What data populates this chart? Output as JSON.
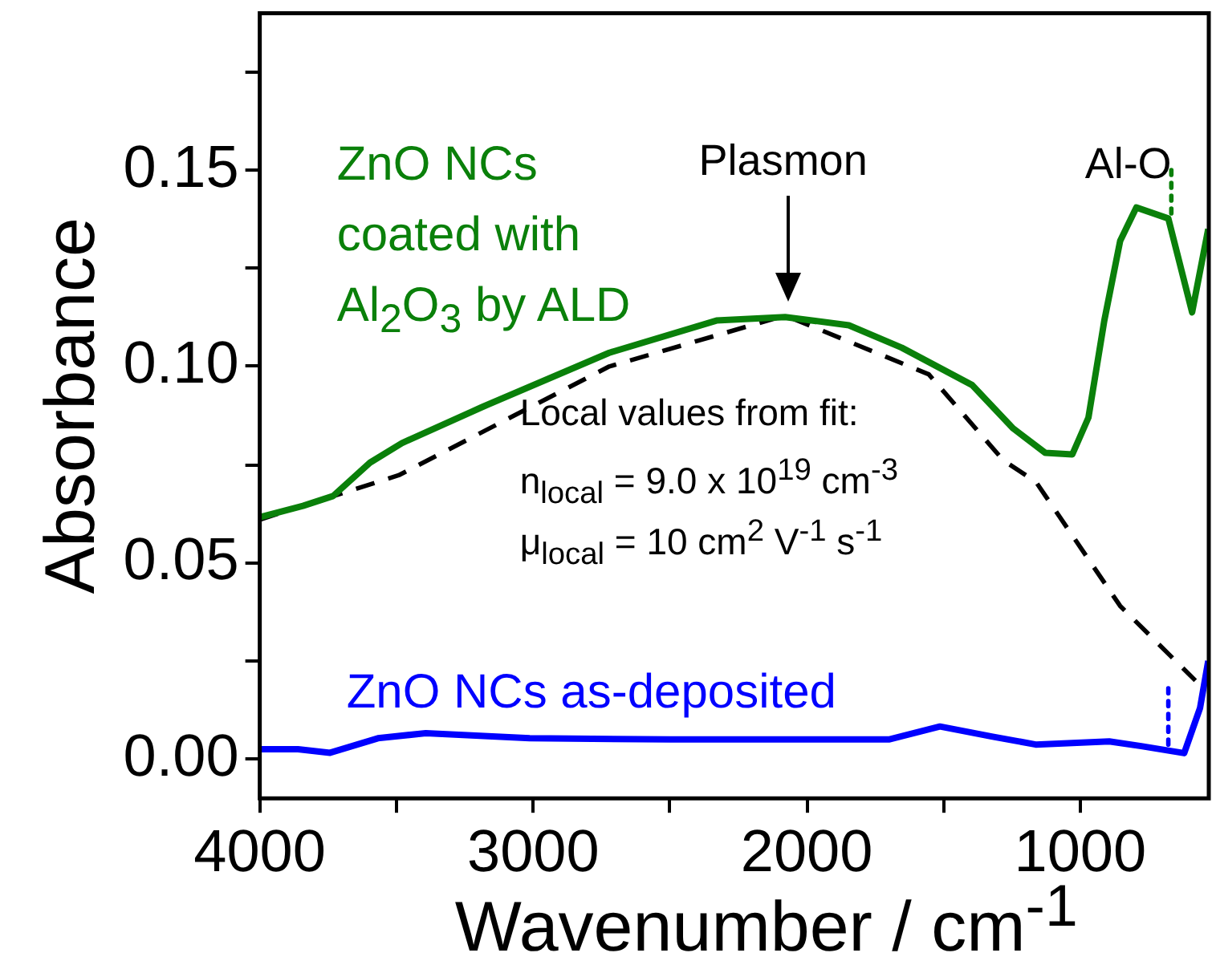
{
  "chart_data": {
    "type": "line",
    "xlabel": "Wavenumber / cm$^{-1}$",
    "ylabel": "Absorbance",
    "xlim": [
      4000,
      530
    ],
    "ylim": [
      -0.01,
      0.19
    ],
    "xticks": [
      4000,
      {
        "value": 3500,
        "label": null
      },
      3000,
      {
        "value": 2500,
        "label": null
      },
      2000,
      {
        "value": 1500,
        "label": null
      },
      1000
    ],
    "yticks": [
      {
        "value": 0,
        "label": "0.00"
      },
      {
        "value": 0.025,
        "label": null
      },
      0.05,
      {
        "value": 0.075,
        "label": null
      },
      {
        "value": 0.1,
        "label": "0.10"
      },
      {
        "value": 0.125,
        "label": null
      },
      0.15,
      {
        "value": 0.175,
        "label": null
      }
    ],
    "grid": false,
    "legend": false,
    "marker": "none",
    "series": [
      {
        "name": "ZnO NCs coated with Al$_{2}$O$_{3}$ by ALD",
        "color": "#0a800a",
        "line_style": "solid",
        "x": [
          4000,
          3842,
          3732,
          3597,
          3480,
          3189,
          2722,
          2330,
          2079,
          1846,
          1653,
          1396,
          1245,
          1128,
          1029,
          970,
          912,
          854,
          795,
          678,
          591,
          532
        ],
        "values": [
          0.0616,
          0.0645,
          0.067,
          0.0755,
          0.0805,
          0.0896,
          0.1035,
          0.1117,
          0.1126,
          0.1105,
          0.1048,
          0.0953,
          0.0842,
          0.078,
          0.0776,
          0.087,
          0.1117,
          0.132,
          0.1405,
          0.1377,
          0.1138,
          0.135
        ]
      },
      {
        "name": "ZnO NCs as-deposited",
        "color": "#0000ff",
        "line_style": "solid",
        "x": [
          4000,
          3860,
          3743,
          3568,
          3393,
          3013,
          2500,
          2000,
          1700,
          1513,
          1320,
          1163,
          894,
          777,
          620,
          562,
          532
        ],
        "values": [
          0.0025,
          0.0025,
          0.0016,
          0.0053,
          0.0066,
          0.0053,
          0.005,
          0.005,
          0.005,
          0.0083,
          0.0057,
          0.0037,
          0.0045,
          0.0033,
          0.0015,
          0.013,
          0.025
        ]
      },
      {
        "color": "#000000",
        "line_style": "dashed",
        "x": [
          4000,
          3492,
          2722,
          2079,
          1554,
          1280,
          1163,
          854,
          579
        ],
        "values": [
          0.061,
          0.0723,
          0.1,
          0.113,
          0.098,
          0.076,
          0.0707,
          0.039,
          0.02
        ]
      },
      {
        "color": "#0a800a",
        "line_style": "dotted",
        "x": [
          667,
          667
        ],
        "values": [
          0.139,
          0.151
        ]
      },
      {
        "color": "#0000ff",
        "line_style": "dotted",
        "x": [
          678,
          678
        ],
        "values": [
          0.0037,
          0.0185
        ]
      }
    ],
    "annotations": [
      "Local values from fit:",
      "n$_{local}$ = 9.0 x 10$^{19}$ cm$^{-3}$",
      "μ$_{local}$ = 10 cm$^{2}$ V$^{-1}$ s$^{-1}$",
      "Plasmon",
      "Al-O"
    ]
  }
}
